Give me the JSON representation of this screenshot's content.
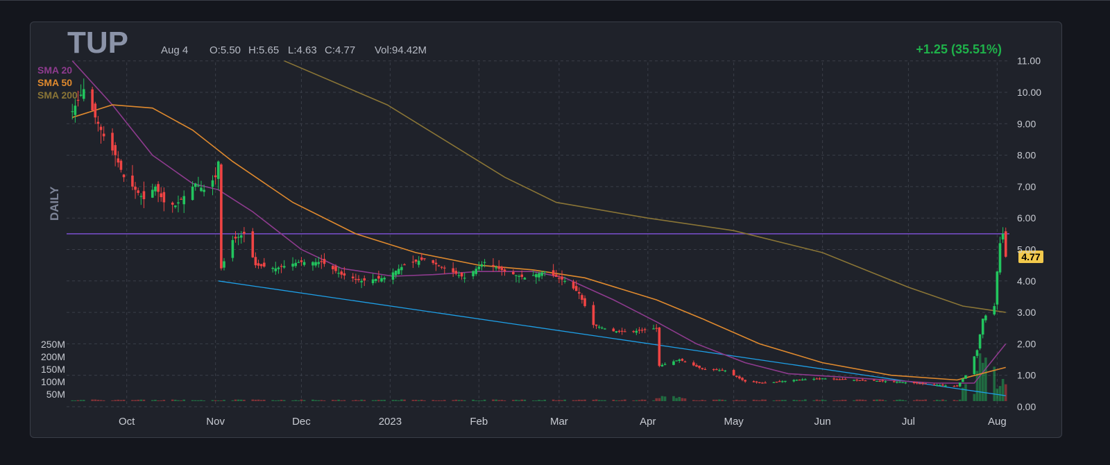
{
  "header": {
    "ticker": "TUP",
    "date": "Aug 4",
    "open": "O:5.50",
    "high": "H:5.65",
    "low": "L:4.63",
    "close": "C:4.77",
    "volume": "Vol:94.42M",
    "change": "+1.25 (35.51%)",
    "timeframe": "DAILY",
    "price_badge": "4.77"
  },
  "colors": {
    "up": "#22c55e",
    "down": "#ef4444",
    "sma20": "#8e3b8e",
    "sma50": "#e08a2e",
    "sma200": "#8a7536",
    "horizontal_line": "#7b4fd0",
    "trendline": "#1ea0e8",
    "badge": "#f2c94c"
  },
  "chart_data": {
    "type": "candlestick",
    "ylim": [
      0,
      11
    ],
    "yticks": [
      "11.00",
      "10.00",
      "9.00",
      "8.00",
      "7.00",
      "6.00",
      "5.00",
      "4.00",
      "3.00",
      "2.00",
      "1.00",
      "0.00"
    ],
    "xticks": [
      "Oct",
      "Nov",
      "Dec",
      "2023",
      "Feb",
      "Mar",
      "Apr",
      "May",
      "Jun",
      "Jul",
      "Aug"
    ],
    "volume_ticks": [
      "250M",
      "200M",
      "150M",
      "100M",
      "50M"
    ],
    "legend": [
      "SMA 20",
      "SMA 50",
      "SMA 200"
    ],
    "horizontal_level": 5.5,
    "trendline": {
      "from": {
        "x": "Nov 2 2022",
        "y": 4.0
      },
      "to": {
        "x": "Aug 4 2023",
        "y": 0.35
      }
    },
    "price_path": [
      [
        "Sep 12 2022",
        9.4
      ],
      [
        "Sep 16 2022",
        10.1
      ],
      [
        "Sep 20 2022",
        9.2
      ],
      [
        "Sep 23 2022",
        8.6
      ],
      [
        "Sep 27 2022",
        8.0
      ],
      [
        "Sep 30 2022",
        7.3
      ],
      [
        "Oct 4 2022",
        6.9
      ],
      [
        "Oct 7 2022",
        6.6
      ],
      [
        "Oct 11 2022",
        7.0
      ],
      [
        "Oct 14 2022",
        6.5
      ],
      [
        "Oct 18 2022",
        6.4
      ],
      [
        "Oct 21 2022",
        6.7
      ],
      [
        "Oct 25 2022",
        7.1
      ],
      [
        "Oct 28 2022",
        6.9
      ],
      [
        "Nov 1 2022",
        7.3
      ],
      [
        "Nov 2 2022",
        7.8
      ],
      [
        "Nov 3 2022",
        4.4
      ],
      [
        "Nov 7 2022",
        5.3
      ],
      [
        "Nov 11 2022",
        5.5
      ],
      [
        "Nov 15 2022",
        4.5
      ],
      [
        "Nov 22 2022",
        4.4
      ],
      [
        "Nov 30 2022",
        4.6
      ],
      [
        "Dec 8 2022",
        4.6
      ],
      [
        "Dec 15 2022",
        4.2
      ],
      [
        "Dec 22 2022",
        4.0
      ],
      [
        "Dec 30 2022",
        4.1
      ],
      [
        "Jan 6 2023",
        4.5
      ],
      [
        "Jan 13 2023",
        4.7
      ],
      [
        "Jan 20 2023",
        4.4
      ],
      [
        "Jan 27 2023",
        4.1
      ],
      [
        "Feb 3 2023",
        4.6
      ],
      [
        "Feb 10 2023",
        4.3
      ],
      [
        "Feb 17 2023",
        4.1
      ],
      [
        "Feb 24 2023",
        4.3
      ],
      [
        "Mar 3 2023",
        4.0
      ],
      [
        "Mar 8 2023",
        3.6
      ],
      [
        "Mar 13 2023",
        2.6
      ],
      [
        "Mar 20 2023",
        2.4
      ],
      [
        "Mar 27 2023",
        2.4
      ],
      [
        "Apr 4 2023",
        2.5
      ],
      [
        "Apr 5 2023",
        1.3
      ],
      [
        "Apr 12 2023",
        1.5
      ],
      [
        "Apr 20 2023",
        1.2
      ],
      [
        "Apr 28 2023",
        1.15
      ],
      [
        "May 5 2023",
        0.8
      ],
      [
        "May 12 2023",
        0.75
      ],
      [
        "May 22 2023",
        0.85
      ],
      [
        "Jun 1 2023",
        0.9
      ],
      [
        "Jun 12 2023",
        0.85
      ],
      [
        "Jun 26 2023",
        0.8
      ],
      [
        "Jul 10 2023",
        0.7
      ],
      [
        "Jul 18 2023",
        0.65
      ],
      [
        "Jul 21 2023",
        1.0
      ],
      [
        "Jul 25 2023",
        1.8
      ],
      [
        "Jul 27 2023",
        2.8
      ],
      [
        "Jul 31 2023",
        3.2
      ],
      [
        "Aug 1 2023",
        4.3
      ],
      [
        "Aug 2 2023",
        5.2
      ],
      [
        "Aug 3 2023",
        5.5
      ],
      [
        "Aug 4 2023",
        4.77
      ]
    ],
    "series": [
      {
        "name": "SMA 20",
        "points": [
          [
            "Sep 12 2022",
            11.0
          ],
          [
            "Sep 26 2022",
            9.6
          ],
          [
            "Oct 10 2022",
            8.0
          ],
          [
            "Oct 24 2022",
            7.1
          ],
          [
            "Nov 2 2022",
            6.9
          ],
          [
            "Nov 14 2022",
            6.2
          ],
          [
            "Dec 1 2022",
            5.0
          ],
          [
            "Dec 15 2022",
            4.4
          ],
          [
            "Jan 2 2023",
            4.15
          ],
          [
            "Jan 16 2023",
            4.2
          ],
          [
            "Feb 1 2023",
            4.3
          ],
          [
            "Feb 20 2023",
            4.3
          ],
          [
            "Mar 3 2023",
            4.1
          ],
          [
            "Mar 20 2023",
            3.4
          ],
          [
            "Apr 4 2023",
            2.7
          ],
          [
            "Apr 18 2023",
            2.0
          ],
          [
            "May 5 2023",
            1.4
          ],
          [
            "May 20 2023",
            1.05
          ],
          [
            "Jun 15 2023",
            0.9
          ],
          [
            "Jul 10 2023",
            0.75
          ],
          [
            "Jul 24 2023",
            0.75
          ],
          [
            "Aug 4 2023",
            2.0
          ]
        ]
      },
      {
        "name": "SMA 50",
        "points": [
          [
            "Sep 12 2022",
            9.2
          ],
          [
            "Sep 26 2022",
            9.6
          ],
          [
            "Oct 10 2022",
            9.5
          ],
          [
            "Oct 24 2022",
            8.8
          ],
          [
            "Nov 7 2022",
            7.8
          ],
          [
            "Nov 28 2022",
            6.5
          ],
          [
            "Dec 20 2022",
            5.5
          ],
          [
            "Jan 10 2023",
            4.9
          ],
          [
            "Feb 1 2023",
            4.5
          ],
          [
            "Feb 20 2023",
            4.35
          ],
          [
            "Mar 10 2023",
            4.1
          ],
          [
            "Apr 4 2023",
            3.4
          ],
          [
            "Apr 20 2023",
            2.8
          ],
          [
            "May 10 2023",
            2.0
          ],
          [
            "Jun 1 2023",
            1.4
          ],
          [
            "Jun 25 2023",
            1.0
          ],
          [
            "Jul 18 2023",
            0.85
          ],
          [
            "Aug 4 2023",
            1.25
          ]
        ]
      },
      {
        "name": "SMA 200",
        "points": [
          [
            "Nov 25 2022",
            11.0
          ],
          [
            "Dec 31 2022",
            9.6
          ],
          [
            "Feb 10 2023",
            7.3
          ],
          [
            "Feb 28 2023",
            6.5
          ],
          [
            "Apr 1 2023",
            6.0
          ],
          [
            "May 1 2023",
            5.6
          ],
          [
            "Jun 1 2023",
            4.9
          ],
          [
            "Jul 1 2023",
            3.8
          ],
          [
            "Jul 20 2023",
            3.2
          ],
          [
            "Aug 4 2023",
            3.0
          ]
        ]
      }
    ]
  }
}
